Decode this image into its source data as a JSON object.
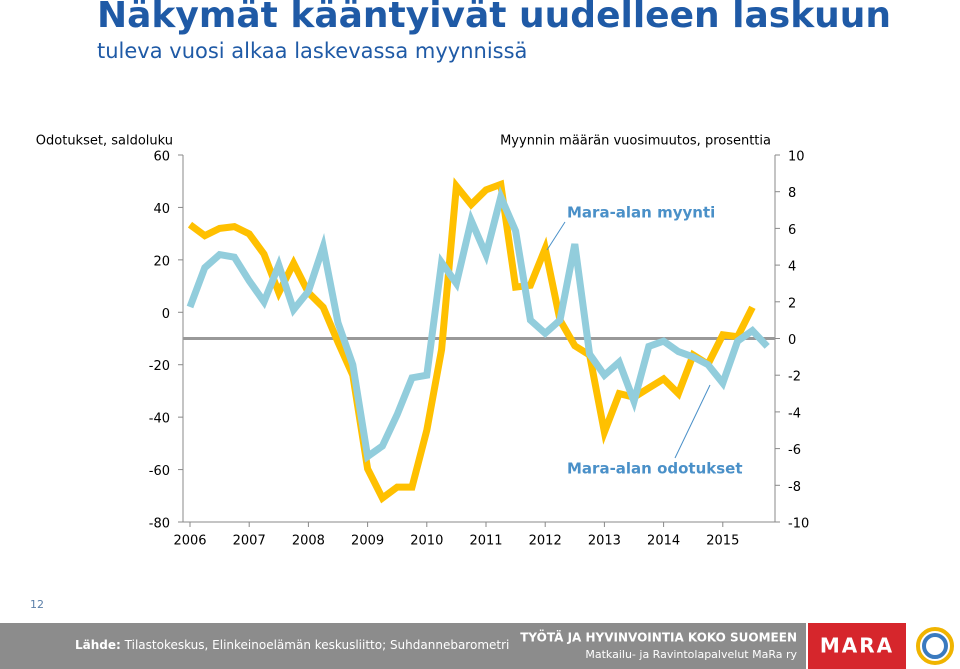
{
  "header": {
    "title": "Näkymät kääntyivät uudelleen laskuun",
    "subtitle": "tuleva vuosi alkaa laskevassa myynnissä"
  },
  "chart_data": {
    "type": "line",
    "y_label": "Odotukset, saldoluku",
    "y2_label": "Myynnin määrän vuosimuutos, prosenttia",
    "categories": [
      "2006",
      null,
      null,
      null,
      "2007",
      null,
      null,
      null,
      "2008",
      null,
      null,
      null,
      "2009",
      null,
      null,
      null,
      "2010",
      null,
      null,
      null,
      "2011",
      null,
      null,
      null,
      "2012",
      null,
      null,
      null,
      "2013",
      null,
      null,
      null,
      "2014",
      null,
      null,
      null,
      "2015",
      null,
      null,
      null
    ],
    "ylim": [
      -80,
      60
    ],
    "yticks": [
      60,
      40,
      20,
      0,
      -20,
      -40,
      -60,
      -80
    ],
    "y2lim": [
      -10,
      10
    ],
    "y2ticks": [
      10,
      8,
      6,
      4,
      2,
      0,
      -2,
      -4,
      -6,
      -8,
      -10
    ],
    "series": [
      {
        "name": "Mara-alan myynti",
        "color": "#ffc000",
        "axis": "y2",
        "values": [
          6.2,
          5.6,
          6.0,
          6.1,
          5.7,
          4.6,
          2.5,
          4.1,
          2.5,
          1.7,
          -0.2,
          -2.0,
          -7.1,
          -8.7,
          -8.1,
          -8.1,
          -5.0,
          -0.6,
          8.3,
          7.3,
          8.1,
          8.4,
          2.8,
          2.9,
          4.9,
          1.0,
          -0.4,
          -0.9,
          -5.1,
          -3.0,
          -3.2,
          -2.7,
          -2.2,
          -3.0,
          -0.9,
          -1.4,
          0.2,
          0.1,
          1.7,
          null
        ]
      },
      {
        "name": "Mara-alan odotukset",
        "color": "#92cddc",
        "axis": "y",
        "values": [
          2,
          17,
          22,
          21,
          12,
          4,
          18,
          1,
          8,
          25,
          -4,
          -20,
          -55,
          -51,
          -39,
          -25,
          -24,
          19,
          11,
          35,
          22,
          44,
          31,
          -3,
          -8,
          -3,
          26,
          -16,
          -24,
          -19,
          -34,
          -13,
          -11,
          -15,
          -17,
          -20,
          -27,
          -11,
          -7,
          -13
        ]
      }
    ]
  },
  "page_number": "12",
  "footer": {
    "source_label": "Lähde:",
    "source": "Tilastokeskus, Elinkeinoelämän keskusliitto; Suhdannebarometri",
    "slogan": "TYÖTÄ JA HYVINVOINTIA KOKO SUOMEEN",
    "organization": "Matkailu- ja Ravintolapalvelut MaRa ry",
    "logo": "MARA"
  }
}
